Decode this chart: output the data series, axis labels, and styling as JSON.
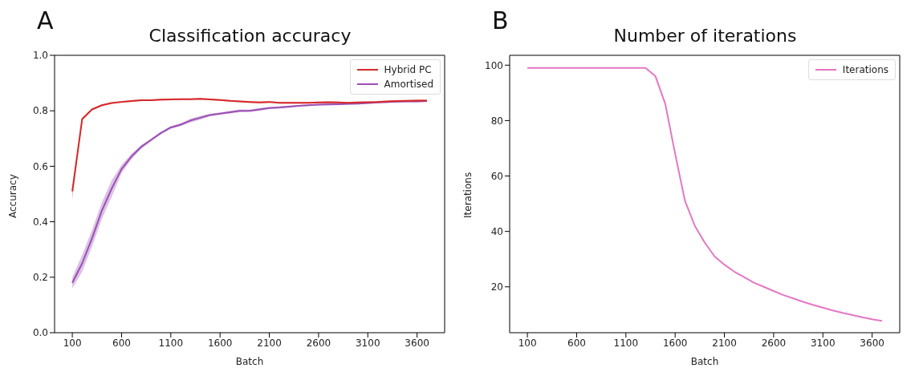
{
  "chart_data": [
    {
      "type": "line",
      "title": "Classification accuracy",
      "xlabel": "Batch",
      "ylabel": "Accuracy",
      "annotations": [
        "A"
      ],
      "x": [
        100,
        200,
        300,
        400,
        500,
        600,
        700,
        800,
        900,
        1000,
        1100,
        1200,
        1300,
        1400,
        1500,
        1600,
        1700,
        1800,
        1900,
        2000,
        2100,
        2200,
        2300,
        2400,
        2500,
        2600,
        2700,
        2800,
        2900,
        3000,
        3100,
        3200,
        3300,
        3400,
        3500,
        3600,
        3700
      ],
      "series": [
        {
          "name": "Hybrid PC",
          "color": "#d62728",
          "values": [
            0.51,
            0.77,
            0.805,
            0.82,
            0.828,
            0.832,
            0.835,
            0.838,
            0.838,
            0.84,
            0.841,
            0.842,
            0.842,
            0.843,
            0.841,
            0.839,
            0.836,
            0.834,
            0.832,
            0.83,
            0.832,
            0.829,
            0.829,
            0.829,
            0.829,
            0.83,
            0.831,
            0.83,
            0.829,
            0.83,
            0.831,
            0.832,
            0.834,
            0.835,
            0.836,
            0.837,
            0.837
          ],
          "lower": [
            0.48,
            0.765,
            0.802,
            0.817,
            0.825,
            0.829,
            0.832,
            0.835,
            0.835,
            0.837,
            0.838,
            0.839,
            0.839,
            0.84,
            0.838,
            0.836,
            0.833,
            0.831,
            0.829,
            0.827,
            0.829,
            0.826,
            0.826,
            0.826,
            0.826,
            0.827,
            0.828,
            0.827,
            0.826,
            0.827,
            0.828,
            0.829,
            0.831,
            0.832,
            0.833,
            0.834,
            0.834
          ],
          "upper": [
            0.52,
            0.775,
            0.808,
            0.823,
            0.831,
            0.835,
            0.838,
            0.841,
            0.841,
            0.843,
            0.844,
            0.845,
            0.845,
            0.846,
            0.844,
            0.842,
            0.839,
            0.837,
            0.835,
            0.833,
            0.835,
            0.832,
            0.832,
            0.832,
            0.832,
            0.833,
            0.834,
            0.833,
            0.832,
            0.833,
            0.834,
            0.835,
            0.837,
            0.838,
            0.839,
            0.84,
            0.84
          ]
        },
        {
          "name": "Amortised",
          "color": "#9b4fb5",
          "values": [
            0.18,
            0.25,
            0.34,
            0.44,
            0.52,
            0.59,
            0.635,
            0.67,
            0.695,
            0.72,
            0.74,
            0.75,
            0.765,
            0.775,
            0.785,
            0.79,
            0.795,
            0.8,
            0.8,
            0.805,
            0.81,
            0.812,
            0.815,
            0.818,
            0.82,
            0.822,
            0.823,
            0.824,
            0.825,
            0.826,
            0.828,
            0.83,
            0.832,
            0.833,
            0.834,
            0.834,
            0.835
          ],
          "lower": [
            0.16,
            0.22,
            0.31,
            0.41,
            0.49,
            0.575,
            0.625,
            0.663,
            0.69,
            0.715,
            0.735,
            0.745,
            0.758,
            0.768,
            0.78,
            0.786,
            0.79,
            0.795,
            0.796,
            0.8,
            0.806,
            0.808,
            0.811,
            0.815,
            0.817,
            0.819,
            0.82,
            0.821,
            0.822,
            0.823,
            0.825,
            0.827,
            0.829,
            0.83,
            0.831,
            0.831,
            0.832
          ],
          "upper": [
            0.2,
            0.28,
            0.37,
            0.47,
            0.55,
            0.605,
            0.645,
            0.677,
            0.7,
            0.725,
            0.745,
            0.755,
            0.772,
            0.782,
            0.79,
            0.794,
            0.8,
            0.805,
            0.804,
            0.81,
            0.814,
            0.816,
            0.819,
            0.821,
            0.823,
            0.825,
            0.826,
            0.827,
            0.828,
            0.829,
            0.831,
            0.833,
            0.835,
            0.836,
            0.837,
            0.837,
            0.838
          ]
        }
      ],
      "xlim": [
        -80,
        3880
      ],
      "xticks": [
        100,
        600,
        1100,
        1600,
        2100,
        2600,
        3100,
        3600
      ],
      "ylim": [
        0,
        1
      ],
      "yticks": [
        {
          "value": 0,
          "label": "0.0"
        },
        0.2,
        0.4,
        0.6,
        0.8,
        {
          "value": 1,
          "label": "1.0"
        }
      ],
      "legend": "top right"
    },
    {
      "type": "line",
      "title": "Number of iterations",
      "xlabel": "Batch",
      "ylabel": "Iterations",
      "annotations": [
        "B"
      ],
      "x": [
        100,
        200,
        300,
        400,
        500,
        600,
        700,
        800,
        900,
        1000,
        1100,
        1200,
        1300,
        1400,
        1500,
        1600,
        1700,
        1800,
        1900,
        2000,
        2100,
        2200,
        2300,
        2400,
        2500,
        2600,
        2700,
        2800,
        2900,
        3000,
        3100,
        3200,
        3300,
        3400,
        3500,
        3600,
        3700
      ],
      "series": [
        {
          "name": "Iterations",
          "color": "#e377c2",
          "values": [
            99,
            99,
            99,
            99,
            99,
            99,
            99,
            99,
            99,
            99,
            99,
            99,
            99,
            96,
            86,
            68,
            51,
            42,
            36,
            31,
            28,
            25.5,
            23.5,
            21.5,
            20,
            18.5,
            17,
            15.8,
            14.6,
            13.5,
            12.5,
            11.5,
            10.6,
            9.8,
            9,
            8.3,
            7.7
          ]
        }
      ],
      "xlim": [
        -80,
        3880
      ],
      "xticks": [
        100,
        600,
        1100,
        1600,
        2100,
        2600,
        3100,
        3600
      ],
      "ylim": [
        3.45,
        103.55
      ],
      "yticks": [
        20,
        40,
        60,
        80,
        100
      ],
      "legend": "top right"
    }
  ]
}
